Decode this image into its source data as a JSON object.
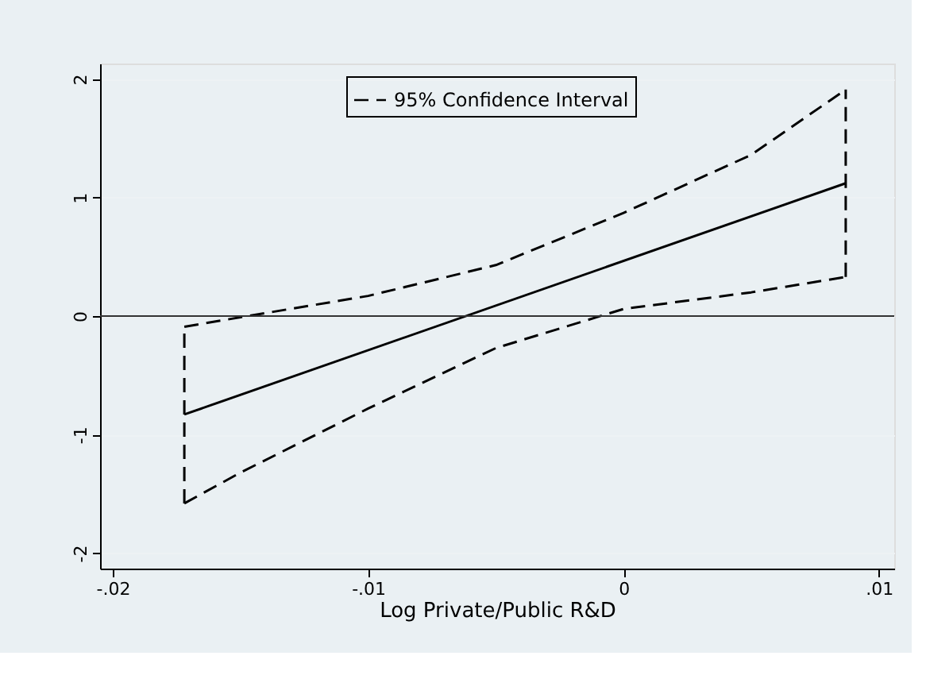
{
  "chart_data": {
    "type": "line",
    "xlabel": "Log Private/Public R&D",
    "series": [
      {
        "color": "#000000",
        "line_style": "solid",
        "x": [
          -0.0172,
          0.0087
        ],
        "values": [
          -0.83,
          1.12
        ]
      },
      {
        "name": "95% Confidence Interval",
        "color": "#000000",
        "line_style": "dashed",
        "x": [
          -0.0172,
          -0.015,
          -0.01,
          -0.005,
          0,
          0.005,
          0.0087
        ],
        "values": [
          -0.09,
          -0.01,
          0.17,
          0.43,
          0.87,
          1.36,
          1.91
        ]
      },
      {
        "color": "#000000",
        "line_style": "dashed",
        "x": [
          -0.0172,
          -0.015,
          -0.01,
          -0.005,
          0,
          0.005,
          0.0087
        ],
        "values": [
          -1.58,
          -1.32,
          -0.78,
          -0.27,
          0.06,
          0.2,
          0.33
        ]
      },
      {
        "color": "#000000",
        "line_style": "dashed",
        "x": [
          -0.0172,
          -0.0172
        ],
        "values": [
          -1.58,
          -0.09
        ]
      },
      {
        "color": "#000000",
        "line_style": "dashed",
        "x": [
          0.0087,
          0.0087
        ],
        "values": [
          0.33,
          1.91
        ]
      }
    ],
    "xlim": [
      -0.0205,
      0.0106
    ],
    "ylim": [
      -2.13,
      2.13
    ],
    "xticks": [
      {
        "value": -0.02,
        "label": "-.02"
      },
      {
        "value": -0.01,
        "label": "-.01"
      },
      0,
      {
        "value": 0.01,
        "label": ".01"
      }
    ],
    "yticks": [
      -2,
      -1,
      0,
      1,
      2
    ],
    "ref_lines": [
      {
        "axis": "y",
        "value": 0,
        "color": "#333333"
      }
    ],
    "grid": "y",
    "legend": "top",
    "marker": "none"
  }
}
